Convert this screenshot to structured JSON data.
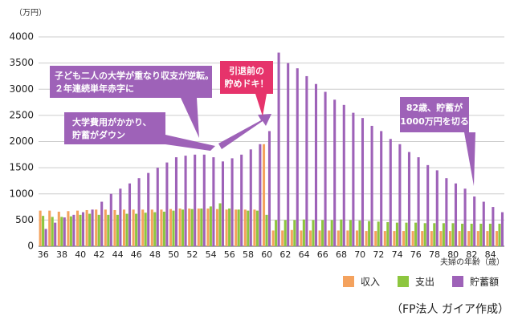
{
  "chart_data": {
    "type": "bar",
    "y_unit": "（万円）",
    "x_label": "夫婦の年齢（歳）",
    "source": "（FP法人 ガイア作成）",
    "categories": [
      "36",
      null,
      "38",
      null,
      "40",
      null,
      "42",
      null,
      "44",
      null,
      "46",
      null,
      "48",
      null,
      "50",
      null,
      "52",
      null,
      "54",
      null,
      "56",
      null,
      "58",
      null,
      "60",
      null,
      "62",
      null,
      "64",
      null,
      "66",
      null,
      "68",
      null,
      "70",
      null,
      "72",
      null,
      "74",
      null,
      "76",
      null,
      "78",
      null,
      "80",
      null,
      "82",
      null,
      "84",
      null
    ],
    "series": [
      {
        "name": "収入",
        "color": "#f4a25e",
        "values": [
          680,
          680,
          660,
          670,
          680,
          690,
          700,
          700,
          690,
          700,
          700,
          700,
          700,
          700,
          710,
          720,
          720,
          720,
          720,
          710,
          700,
          700,
          700,
          700,
          1950,
          300,
          300,
          310,
          300,
          300,
          300,
          300,
          300,
          300,
          300,
          290,
          290,
          290,
          290,
          290,
          290,
          290,
          290,
          290,
          290,
          290,
          290,
          290,
          290,
          290
        ]
      },
      {
        "name": "支出",
        "color": "#8dc63f",
        "values": [
          580,
          560,
          560,
          570,
          600,
          620,
          600,
          600,
          600,
          620,
          620,
          640,
          650,
          660,
          680,
          700,
          710,
          720,
          760,
          820,
          720,
          700,
          680,
          680,
          600,
          500,
          500,
          500,
          510,
          500,
          500,
          500,
          510,
          500,
          490,
          480,
          470,
          460,
          450,
          450,
          450,
          440,
          440,
          440,
          440,
          430,
          430,
          430,
          430,
          430
        ]
      },
      {
        "name": "貯蓄額",
        "color": "#9e62b8",
        "values": [
          330,
          450,
          550,
          600,
          650,
          700,
          850,
          1000,
          1100,
          1200,
          1300,
          1400,
          1500,
          1600,
          1700,
          1730,
          1750,
          1750,
          1700,
          1620,
          1680,
          1750,
          1850,
          1950,
          2200,
          3700,
          3500,
          3400,
          3250,
          3100,
          2950,
          2800,
          2700,
          2550,
          2450,
          2300,
          2200,
          2050,
          1950,
          1800,
          1700,
          1550,
          1450,
          1300,
          1200,
          1100,
          950,
          850,
          750,
          650
        ]
      }
    ],
    "ylim": [
      0,
      4000
    ],
    "yticks": [
      0,
      500,
      1000,
      1500,
      2000,
      2500,
      3000,
      3500,
      4000
    ],
    "grid": true,
    "annotations": [
      {
        "lines": [
          "子ども二人の大学が重なり収支が逆転。",
          "２年連続単年赤字に"
        ]
      },
      {
        "lines": [
          "大学費用がかかり、",
          "貯蓄がダウン"
        ]
      },
      {
        "lines": [
          "引退前の",
          "貯めドキ！"
        ]
      },
      {
        "lines": [
          "82歳、貯蓄が",
          "1000万円を切る"
        ]
      }
    ]
  }
}
